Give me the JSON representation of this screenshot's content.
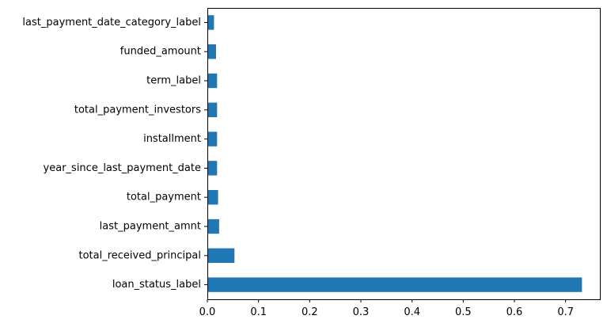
{
  "chart_data": {
    "type": "bar",
    "orientation": "horizontal",
    "categories": [
      "loan_status_label",
      "total_received_principal",
      "last_payment_amnt",
      "total_payment",
      "year_since_last_payment_date",
      "installment",
      "total_payment_investors",
      "term_label",
      "funded_amount",
      "last_payment_date_category_label"
    ],
    "values": [
      0.732,
      0.053,
      0.023,
      0.021,
      0.019,
      0.019,
      0.019,
      0.019,
      0.017,
      0.013
    ],
    "xlim": [
      0,
      0.767
    ],
    "xticks": [
      "0.0",
      "0.1",
      "0.2",
      "0.3",
      "0.4",
      "0.5",
      "0.6",
      "0.7"
    ],
    "title": "",
    "xlabel": "",
    "ylabel": "",
    "grid": false,
    "bar_color": "#1f77b4"
  }
}
